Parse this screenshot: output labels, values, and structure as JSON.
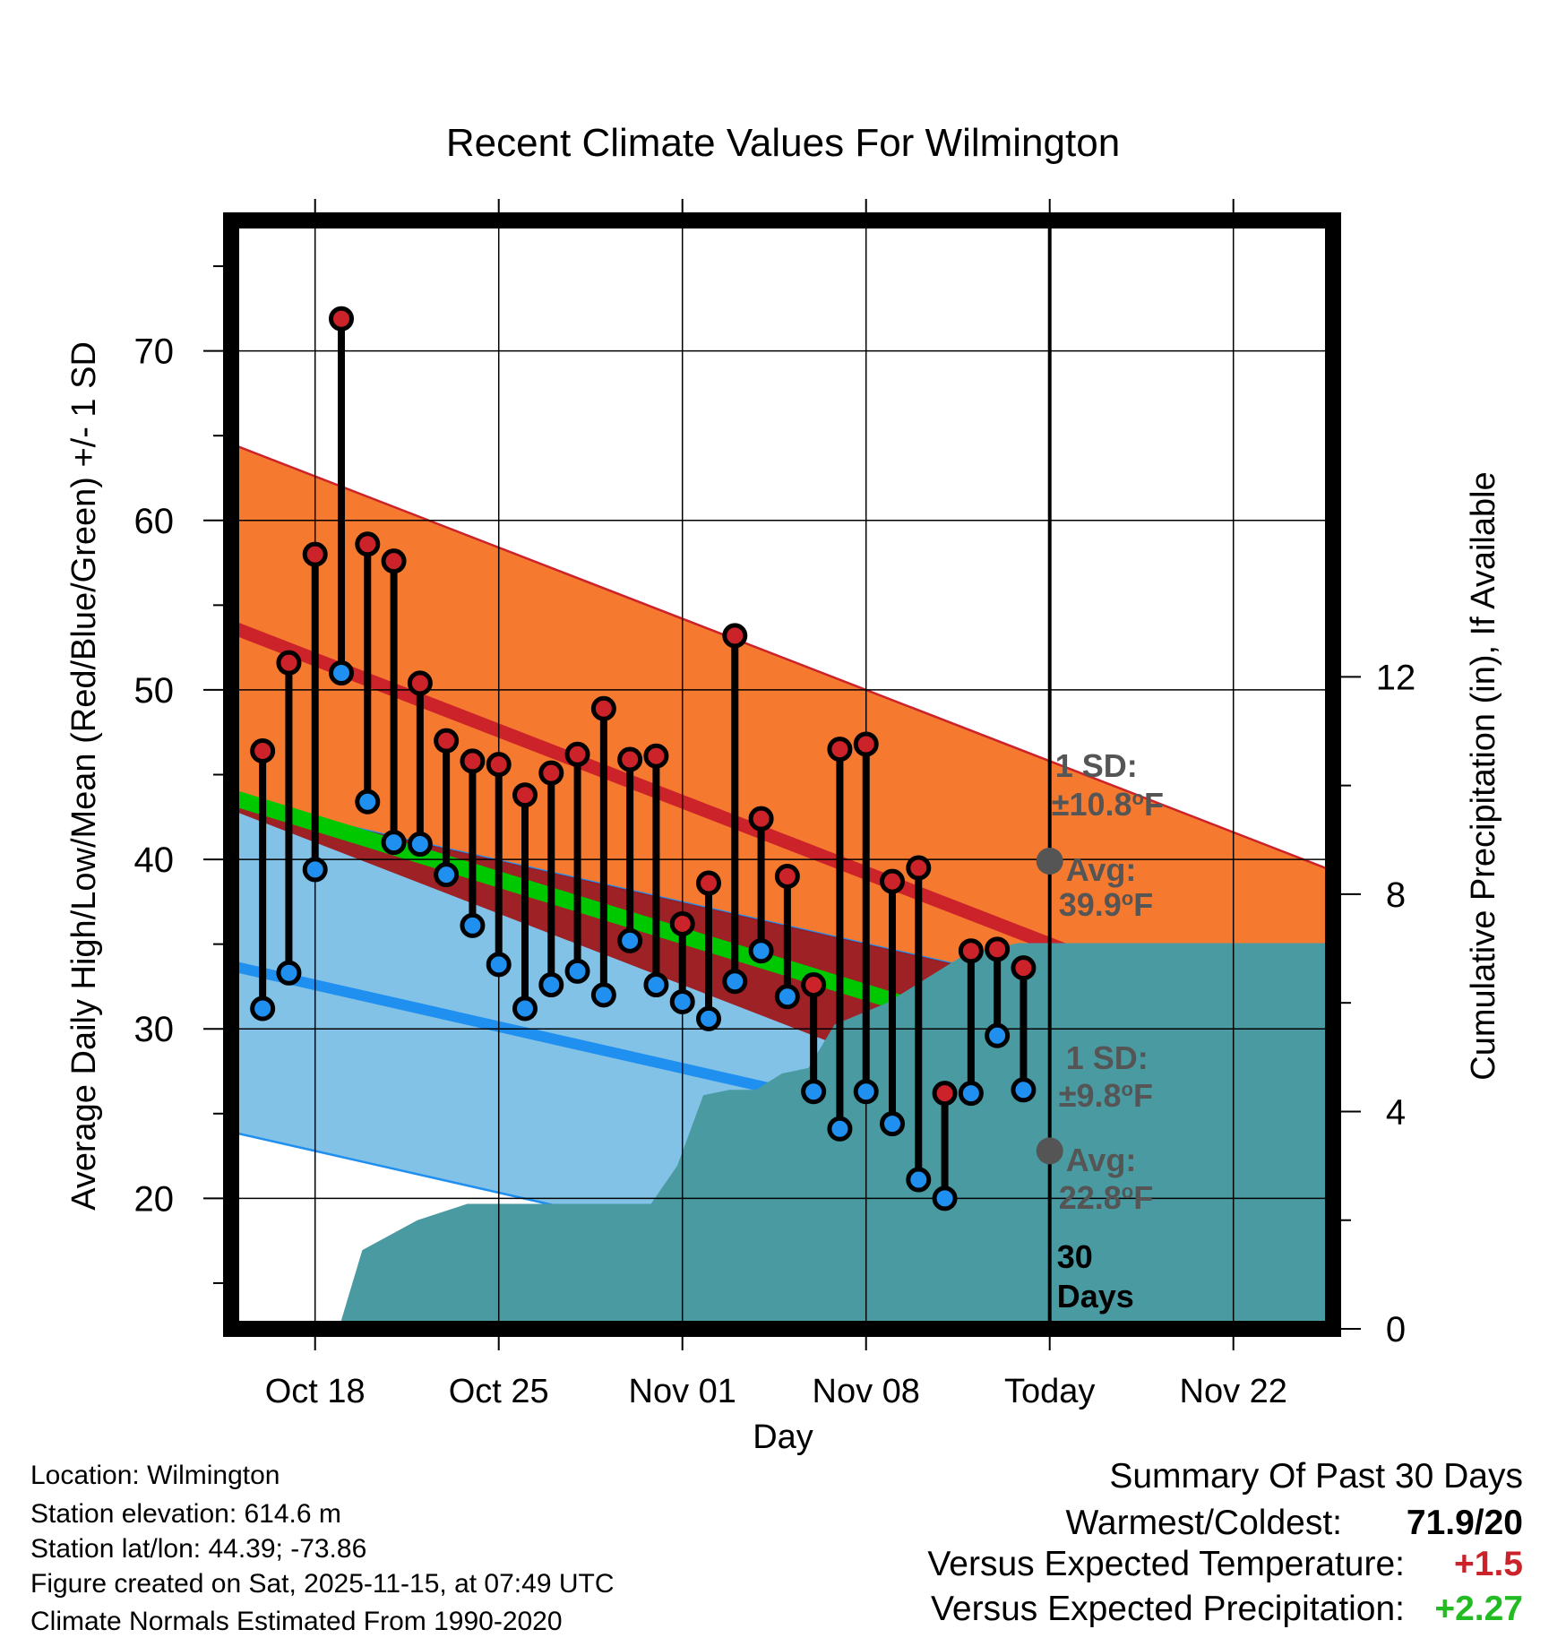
{
  "chart_data": {
    "type": "line",
    "title": "Recent Climate Values For Wilmington",
    "xlabel": "Day",
    "ylabel_left": "Average Daily High/Low/Mean (Red/Blue/Green) +/- 1 SD",
    "ylabel_right": "Cumulative Precipitation (in), If Available",
    "x_ticks": [
      {
        "label": "Oct 18",
        "day": 2
      },
      {
        "label": "Oct 25",
        "day": 9
      },
      {
        "label": "Nov 01",
        "day": 16
      },
      {
        "label": "Nov 08",
        "day": 23
      },
      {
        "label": "Today",
        "day": 30
      },
      {
        "label": "Nov 22",
        "day": 37
      }
    ],
    "x_range": [
      -1.2,
      40.8
    ],
    "y_left_ticks": [
      20,
      30,
      40,
      50,
      60,
      70
    ],
    "y_left_range": [
      12.3,
      77.7
    ],
    "y_right_ticks": [
      0,
      4,
      8,
      12
    ],
    "y_right_range": [
      0,
      20.4
    ],
    "observed": {
      "days": [
        0,
        1,
        2,
        3,
        4,
        5,
        6,
        7,
        8,
        9,
        10,
        11,
        12,
        13,
        14,
        15,
        16,
        17,
        18,
        19,
        20,
        21,
        22,
        23,
        24,
        25,
        26,
        27,
        28,
        29
      ],
      "highs": [
        46.4,
        51.6,
        58.0,
        71.9,
        58.6,
        57.6,
        50.4,
        47.0,
        45.8,
        45.6,
        43.8,
        45.1,
        46.2,
        48.9,
        45.9,
        46.1,
        36.2,
        38.6,
        53.2,
        42.4,
        39.0,
        32.6,
        46.5,
        46.8,
        38.7,
        39.5,
        26.2,
        34.6,
        34.7,
        33.6
      ],
      "lows": [
        31.2,
        33.3,
        39.4,
        51.0,
        43.4,
        41.0,
        40.9,
        39.1,
        36.1,
        33.8,
        31.2,
        32.6,
        33.4,
        32.0,
        35.2,
        32.6,
        31.6,
        30.6,
        32.8,
        34.6,
        31.9,
        26.3,
        24.1,
        26.3,
        24.4,
        21.1,
        20.0,
        26.2,
        29.6,
        26.4
      ]
    },
    "normal_high": {
      "start": 53.0,
      "end": 35.6,
      "sd": 10.8
    },
    "normal_low": {
      "start": 33.3,
      "end": 23.1,
      "sd": 9.8
    },
    "normal_mean": {
      "start": 43.1,
      "end": 29.3
    },
    "precip": {
      "days": [
        2.9,
        3.8,
        5.9,
        7.8,
        9.8,
        10.8,
        11.8,
        12.8,
        13.8,
        14.8,
        15.8,
        16.8,
        17.8,
        18.8,
        19.8,
        20.8,
        21.8,
        22.8,
        23.8,
        24.8,
        25.8,
        26.8,
        27.8,
        28.8,
        29.8,
        30,
        40.8
      ],
      "cumulative": [
        0,
        1.45,
        2.0,
        2.3,
        2.3,
        2.3,
        2.3,
        2.3,
        2.3,
        2.3,
        3.0,
        4.3,
        4.4,
        4.4,
        4.7,
        4.8,
        5.6,
        5.8,
        6.0,
        6.3,
        6.6,
        6.9,
        7.0,
        7.1,
        7.1,
        7.1,
        7.1
      ]
    },
    "today_labels": {
      "high_sd": "1 SD:",
      "high_sd_value": "±10.8",
      "high_avg": "Avg:",
      "high_avg_value": "39.9",
      "low_sd": "1 SD:",
      "low_sd_value": "±9.8",
      "low_avg": "Avg:",
      "low_avg_value": "22.8",
      "deg_unit": "o",
      "f_unit": "F",
      "window_num": "30",
      "window_unit": "Days",
      "today_high_avg": 39.9,
      "today_low_avg": 22.8
    },
    "colors": {
      "high_band": "#f57a30",
      "high_line": "#cc2229",
      "low_band": "#82c2e6",
      "low_line": "#1f8ff0",
      "mean_line": "#00c800",
      "overlap": "#a01010",
      "precip": "#4a9aa2",
      "high_dot": "#cc2229",
      "low_dot": "#1f8ff0",
      "today_dot": "#555555",
      "annot": "#555555"
    }
  },
  "info": {
    "location": "Location: Wilmington",
    "elevation": "Station elevation: 614.6 m",
    "latlon": "Station lat/lon: 44.39; -73.86",
    "created": "Figure created on Sat, 2025-11-15, at 07:49 UTC",
    "normals": "Climate Normals Estimated From 1990-2020"
  },
  "summary": {
    "title": "Summary Of Past 30 Days",
    "warmest_label": "Warmest/Coldest:",
    "warmest_value": "71.9/20",
    "temp_label": "Versus Expected Temperature:",
    "temp_value": "+1.5",
    "temp_color": "#cc2229",
    "precip_label": "Versus Expected Precipitation:",
    "precip_value": "+2.27",
    "precip_color": "#22bb22"
  }
}
